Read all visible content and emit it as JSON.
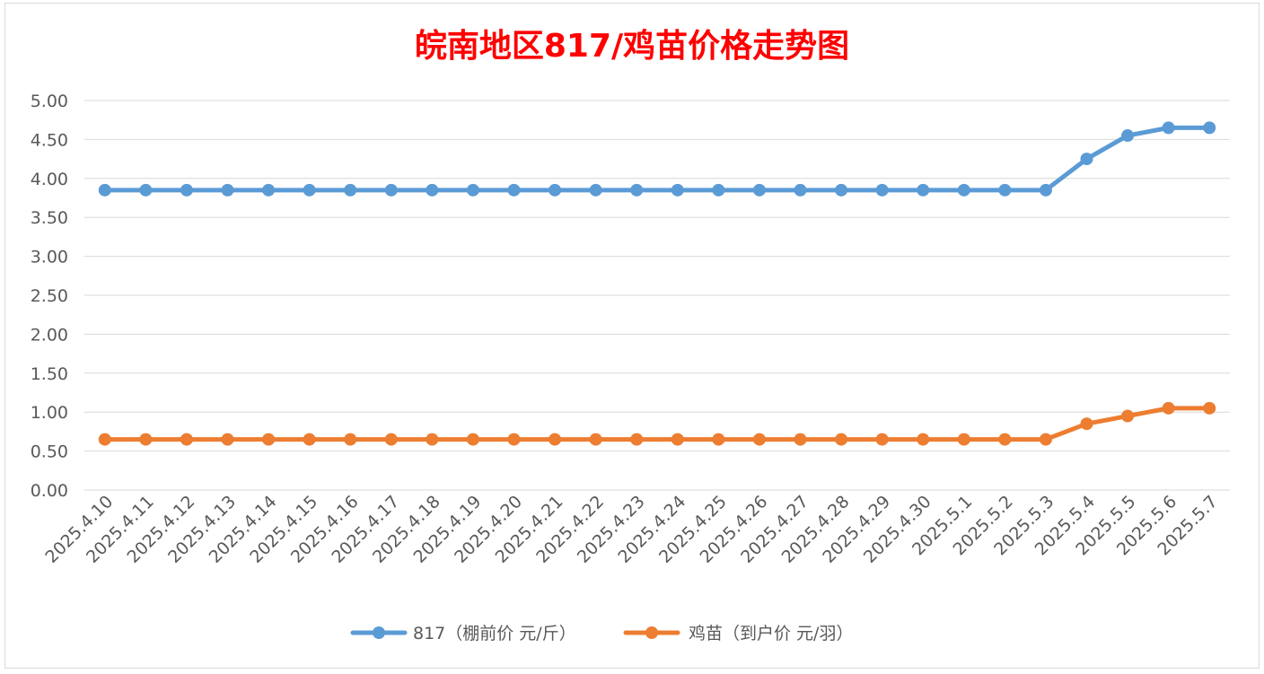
{
  "chart_data": {
    "type": "line",
    "title": "皖南地区817/鸡苗价格走势图",
    "categories": [
      "2025.4.10",
      "2025.4.11",
      "2025.4.12",
      "2025.4.13",
      "2025.4.14",
      "2025.4.15",
      "2025.4.16",
      "2025.4.17",
      "2025.4.18",
      "2025.4.19",
      "2025.4.20",
      "2025.4.21",
      "2025.4.22",
      "2025.4.23",
      "2025.4.24",
      "2025.4.25",
      "2025.4.26",
      "2025.4.27",
      "2025.4.28",
      "2025.4.29",
      "2025.4.30",
      "2025.5.1",
      "2025.5.2",
      "2025.5.3",
      "2025.5.4",
      "2025.5.5",
      "2025.5.6",
      "2025.5.7"
    ],
    "series": [
      {
        "name": "817（棚前价 元/斤）",
        "color": "#5b9bd5",
        "values": [
          3.85,
          3.85,
          3.85,
          3.85,
          3.85,
          3.85,
          3.85,
          3.85,
          3.85,
          3.85,
          3.85,
          3.85,
          3.85,
          3.85,
          3.85,
          3.85,
          3.85,
          3.85,
          3.85,
          3.85,
          3.85,
          3.85,
          3.85,
          3.85,
          4.25,
          4.55,
          4.65,
          4.65
        ]
      },
      {
        "name": "鸡苗（到户价 元/羽）",
        "color": "#ed7d31",
        "values": [
          0.65,
          0.65,
          0.65,
          0.65,
          0.65,
          0.65,
          0.65,
          0.65,
          0.65,
          0.65,
          0.65,
          0.65,
          0.65,
          0.65,
          0.65,
          0.65,
          0.65,
          0.65,
          0.65,
          0.65,
          0.65,
          0.65,
          0.65,
          0.65,
          0.85,
          0.95,
          1.05,
          1.05
        ]
      }
    ],
    "ylim": [
      0,
      5
    ],
    "yticks": [
      "0.00",
      "0.50",
      "1.00",
      "1.50",
      "2.00",
      "2.50",
      "3.00",
      "3.50",
      "4.00",
      "4.50",
      "5.00"
    ],
    "grid": true,
    "legend_position": "bottom",
    "xlabel": "",
    "ylabel": ""
  }
}
